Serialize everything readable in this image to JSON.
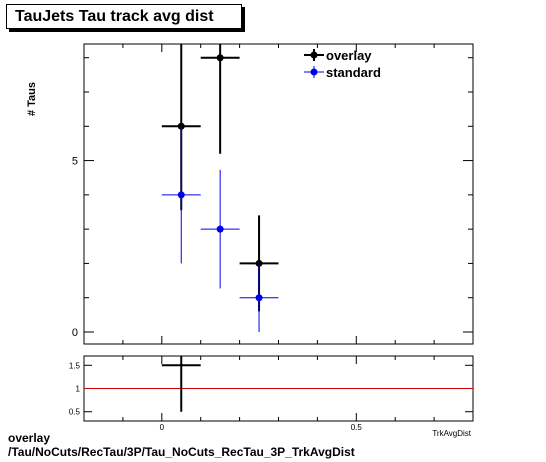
{
  "title": "TauJets Tau track avg dist",
  "footer": {
    "line1": "overlay",
    "line2": "/Tau/NoCuts/RecTau/3P/Tau_NoCuts_RecTau_3P_TrkAvgDist"
  },
  "chart_data": [
    {
      "type": "scatter",
      "ylabel": "# Taus",
      "xlabel": "TrkAvgDist",
      "xlim": [
        -0.2,
        0.8
      ],
      "ylim": [
        -0.35,
        8.4
      ],
      "xticks": [
        {
          "v": 0,
          "label": "0"
        },
        {
          "v": 0.5,
          "label": "0.5"
        }
      ],
      "yticks": [
        {
          "v": 0,
          "label": "0"
        },
        {
          "v": 5,
          "label": "5"
        }
      ],
      "legend_position": "top-right",
      "series": [
        {
          "name": "overlay",
          "color": "#000000",
          "points": [
            {
              "x": 0.05,
              "xerr": 0.05,
              "y": 6,
              "ylo": 3.55,
              "yhi": 8.45
            },
            {
              "x": 0.15,
              "xerr": 0.05,
              "y": 8,
              "ylo": 5.2,
              "yhi": 8.45
            },
            {
              "x": 0.25,
              "xerr": 0.05,
              "y": 2,
              "ylo": 0.6,
              "yhi": 3.4
            }
          ]
        },
        {
          "name": "standard",
          "color": "#0000ee",
          "points": [
            {
              "x": 0.05,
              "xerr": 0.05,
              "y": 4,
              "ylo": 2.0,
              "yhi": 6.0
            },
            {
              "x": 0.15,
              "xerr": 0.05,
              "y": 3,
              "ylo": 1.27,
              "yhi": 4.73
            },
            {
              "x": 0.25,
              "xerr": 0.05,
              "y": 1,
              "ylo": 0.0,
              "yhi": 2.0
            }
          ]
        }
      ]
    },
    {
      "type": "scatter",
      "xlim": [
        -0.2,
        0.8
      ],
      "ylim": [
        0.3,
        1.7
      ],
      "xticks": [
        {
          "v": 0,
          "label": "0"
        },
        {
          "v": 0.5,
          "label": "0.5"
        }
      ],
      "yticks": [
        {
          "v": 0.5,
          "label": "0.5"
        },
        {
          "v": 1,
          "label": "1"
        },
        {
          "v": 1.5,
          "label": "1.5"
        }
      ],
      "reference_line": {
        "y": 1,
        "color": "#cc0000"
      },
      "series": [
        {
          "name": "ratio",
          "color": "#000000",
          "points": [
            {
              "x": 0.05,
              "xerr": 0.05,
              "y": 1.5,
              "ylo": 0.5,
              "yhi": 1.7
            }
          ]
        }
      ]
    }
  ]
}
